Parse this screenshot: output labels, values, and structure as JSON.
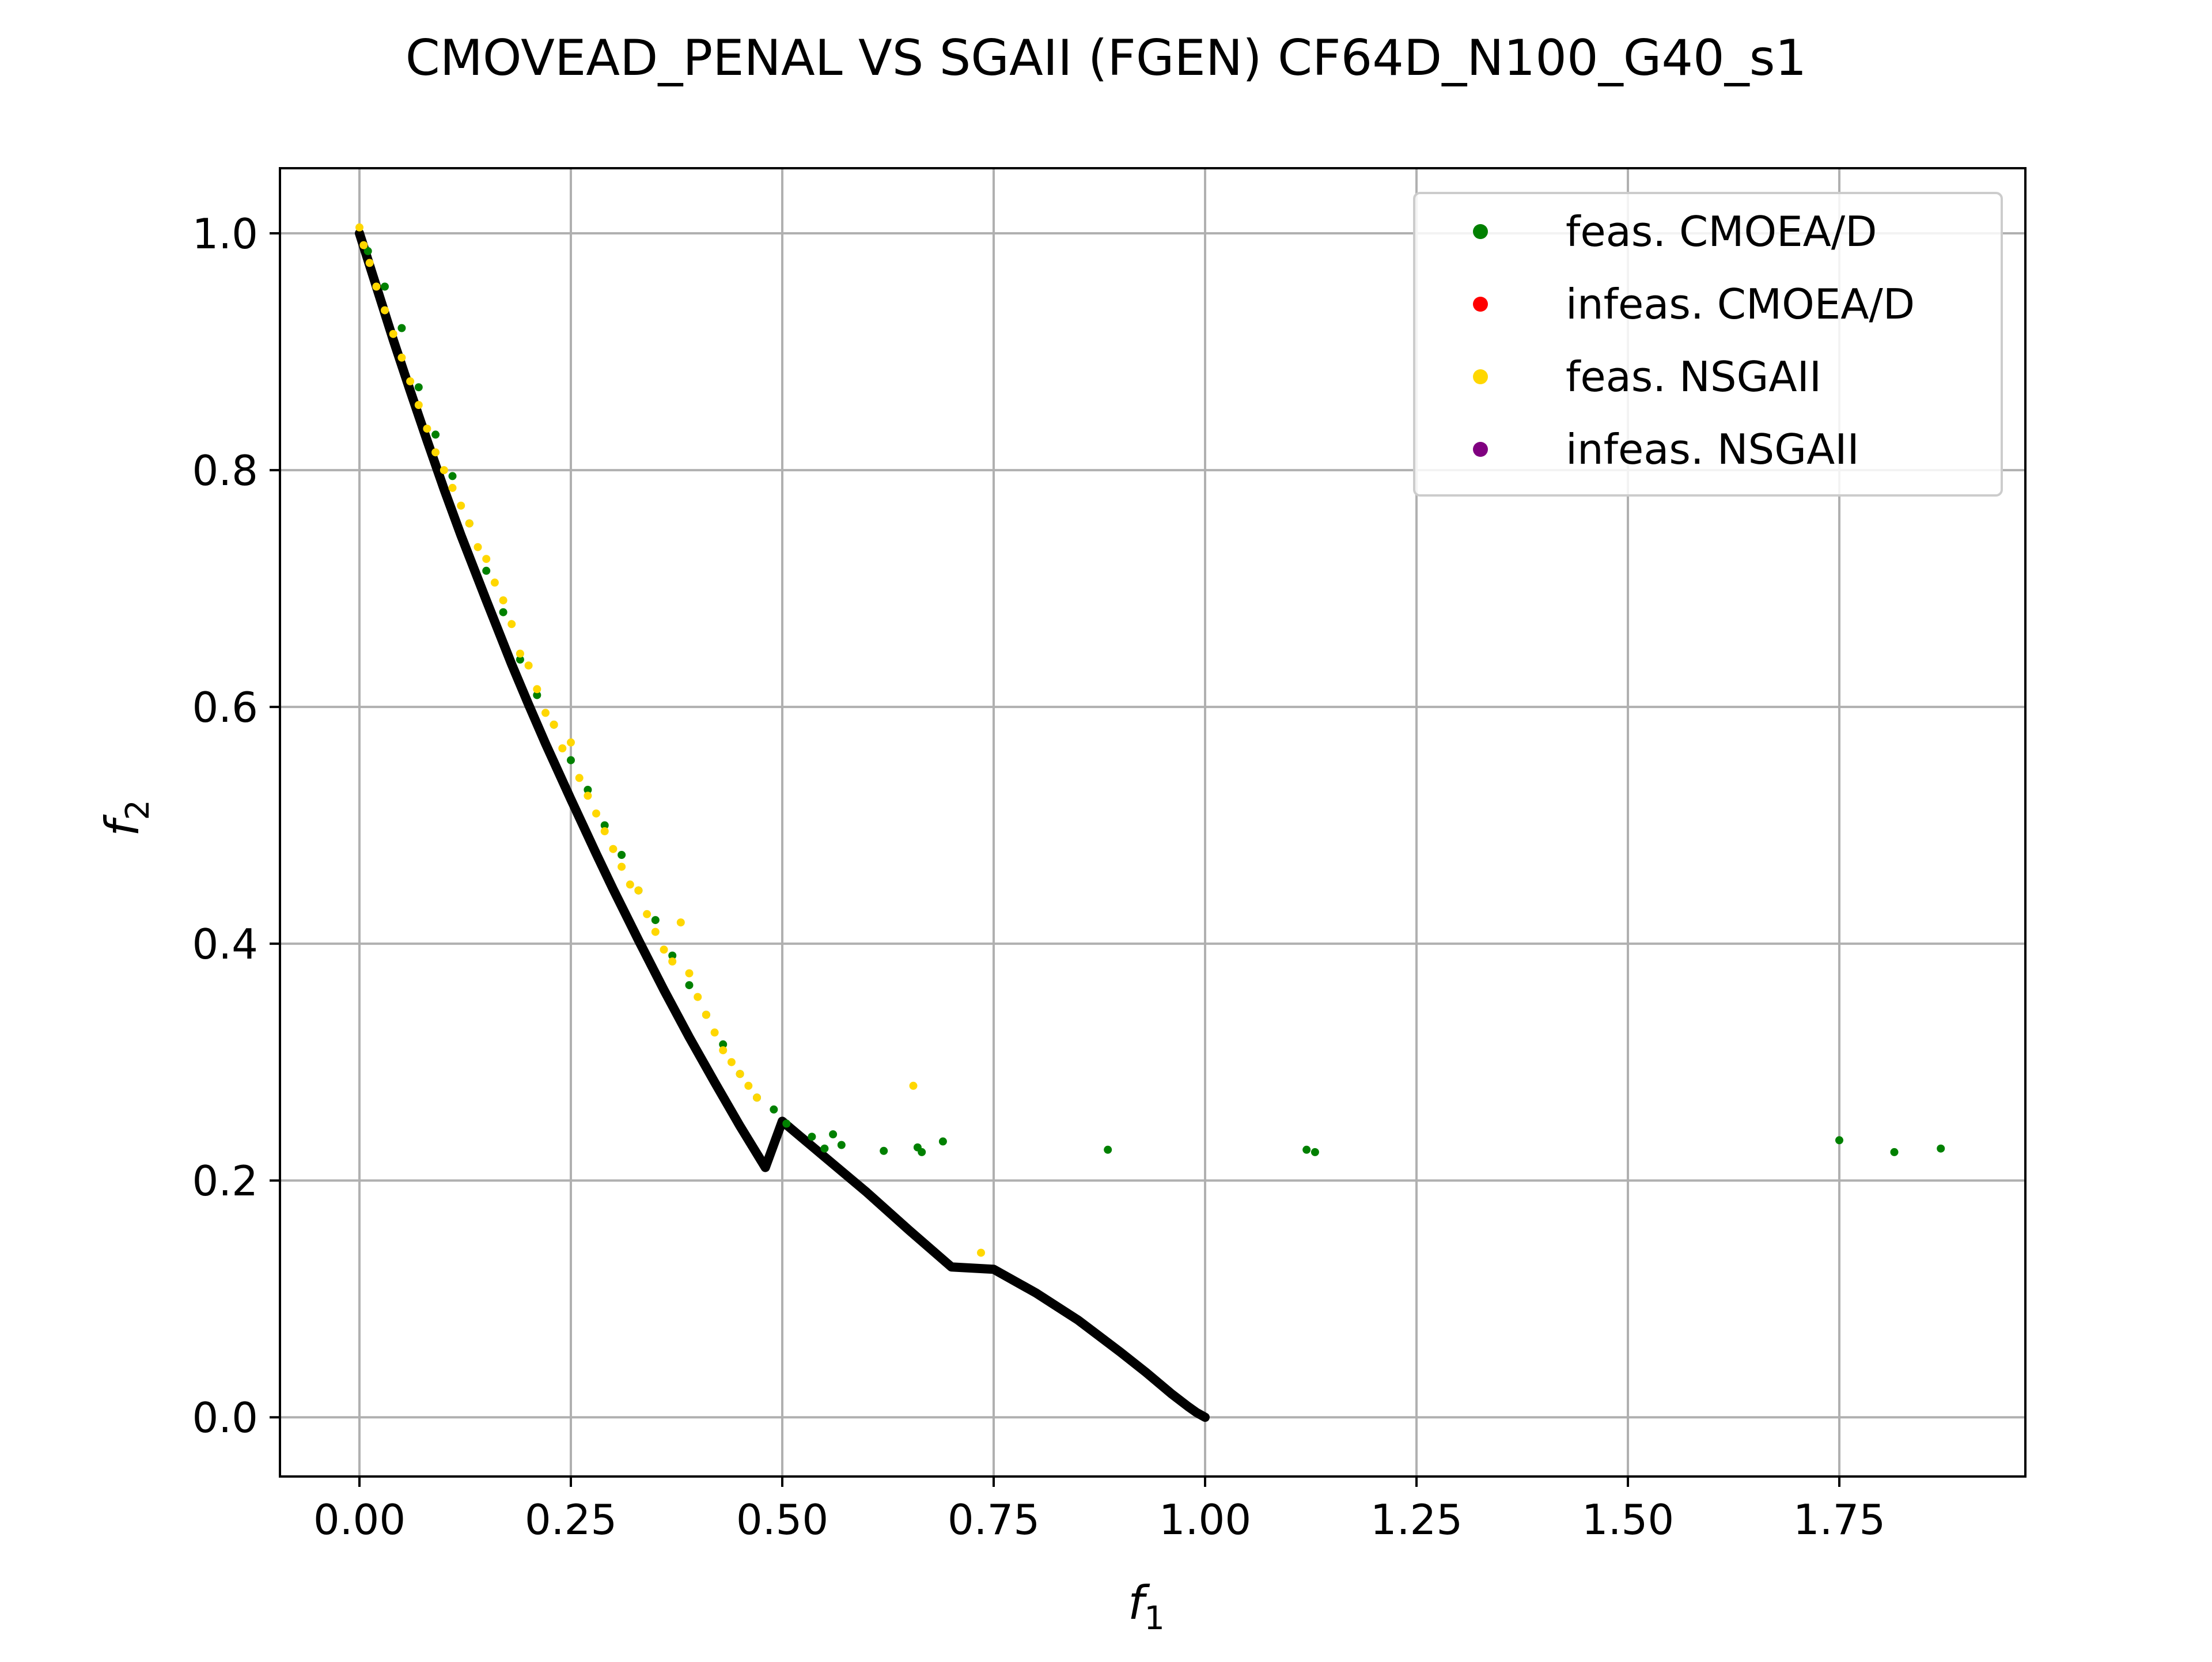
{
  "chart_data": {
    "type": "scatter",
    "title": "CMOVEAD_PENAL VS SGAII (FGEN) CF64D_N100_G40_s1",
    "xlabel": {
      "main": "f",
      "sub": "1"
    },
    "ylabel": {
      "main": "f",
      "sub": "2"
    },
    "xlim": [
      -0.094,
      1.97
    ],
    "ylim": [
      -0.05,
      1.055
    ],
    "xticks": [
      0.0,
      0.25,
      0.5,
      0.75,
      1.0,
      1.25,
      1.5,
      1.75
    ],
    "xtick_labels": [
      "0.00",
      "0.25",
      "0.50",
      "0.75",
      "1.00",
      "1.25",
      "1.50",
      "1.75"
    ],
    "yticks": [
      0.0,
      0.2,
      0.4,
      0.6,
      0.8,
      1.0
    ],
    "ytick_labels": [
      "0.0",
      "0.2",
      "0.4",
      "0.6",
      "0.8",
      "1.0"
    ],
    "grid": true,
    "legend_position": "top-right",
    "legend": [
      {
        "label": "feas. CMOEA/D",
        "color": "#008000"
      },
      {
        "label": "infeas. CMOEA/D",
        "color": "#ff0000"
      },
      {
        "label": "feas. NSGAII",
        "color": "#ffd700"
      },
      {
        "label": "infeas. NSGAII",
        "color": "#800080"
      }
    ],
    "true_front": {
      "color": "#000000",
      "x": [
        0.0,
        0.02,
        0.04,
        0.06,
        0.08,
        0.1,
        0.12,
        0.15,
        0.18,
        0.2,
        0.22,
        0.25,
        0.28,
        0.3,
        0.33,
        0.36,
        0.39,
        0.42,
        0.45,
        0.48,
        0.5,
        0.55,
        0.6,
        0.65,
        0.7,
        0.75,
        0.8,
        0.85,
        0.9,
        0.93,
        0.96,
        0.98,
        0.99,
        1.0
      ],
      "y": [
        1.0,
        0.955,
        0.91,
        0.867,
        0.825,
        0.784,
        0.745,
        0.69,
        0.636,
        0.602,
        0.569,
        0.522,
        0.476,
        0.446,
        0.403,
        0.361,
        0.321,
        0.283,
        0.246,
        0.211,
        0.25,
        0.22,
        0.19,
        0.158,
        0.127,
        0.125,
        0.105,
        0.082,
        0.055,
        0.038,
        0.02,
        0.009,
        0.004,
        0.0
      ]
    },
    "series": [
      {
        "name": "feas. CMOEA/D",
        "color": "#008000",
        "x": [
          0.01,
          0.03,
          0.05,
          0.07,
          0.09,
          0.11,
          0.13,
          0.15,
          0.17,
          0.19,
          0.21,
          0.23,
          0.25,
          0.27,
          0.29,
          0.31,
          0.33,
          0.35,
          0.37,
          0.39,
          0.41,
          0.43,
          0.45,
          0.47,
          0.49,
          0.505,
          0.535,
          0.55,
          0.56,
          0.57,
          0.62,
          0.66,
          0.665,
          0.69,
          0.885,
          1.12,
          1.13,
          1.75,
          1.815,
          1.87
        ],
        "y": [
          0.985,
          0.955,
          0.92,
          0.87,
          0.83,
          0.795,
          0.755,
          0.715,
          0.68,
          0.64,
          0.61,
          0.585,
          0.555,
          0.53,
          0.5,
          0.475,
          0.445,
          0.42,
          0.39,
          0.365,
          0.34,
          0.315,
          0.29,
          0.27,
          0.26,
          0.248,
          0.237,
          0.227,
          0.239,
          0.23,
          0.225,
          0.228,
          0.224,
          0.233,
          0.226,
          0.226,
          0.224,
          0.234,
          0.224,
          0.227
        ]
      },
      {
        "name": "infeas. CMOEA/D",
        "color": "#ff0000",
        "x": [],
        "y": []
      },
      {
        "name": "feas. NSGAII",
        "color": "#ffd700",
        "x": [
          0.0,
          0.005,
          0.012,
          0.02,
          0.03,
          0.04,
          0.05,
          0.06,
          0.07,
          0.08,
          0.09,
          0.1,
          0.11,
          0.12,
          0.13,
          0.14,
          0.15,
          0.16,
          0.17,
          0.18,
          0.19,
          0.2,
          0.21,
          0.22,
          0.23,
          0.24,
          0.25,
          0.26,
          0.27,
          0.28,
          0.29,
          0.3,
          0.31,
          0.32,
          0.33,
          0.34,
          0.35,
          0.36,
          0.37,
          0.38,
          0.39,
          0.4,
          0.41,
          0.42,
          0.43,
          0.44,
          0.45,
          0.46,
          0.47,
          0.655,
          0.735
        ],
        "y": [
          1.005,
          0.99,
          0.975,
          0.955,
          0.935,
          0.915,
          0.895,
          0.875,
          0.855,
          0.835,
          0.815,
          0.8,
          0.785,
          0.77,
          0.755,
          0.735,
          0.725,
          0.705,
          0.69,
          0.67,
          0.645,
          0.635,
          0.615,
          0.595,
          0.585,
          0.565,
          0.57,
          0.54,
          0.525,
          0.51,
          0.495,
          0.48,
          0.465,
          0.45,
          0.445,
          0.425,
          0.41,
          0.395,
          0.385,
          0.418,
          0.375,
          0.355,
          0.34,
          0.325,
          0.31,
          0.3,
          0.29,
          0.28,
          0.27,
          0.28,
          0.139
        ]
      },
      {
        "name": "infeas. NSGAII",
        "color": "#800080",
        "x": [],
        "y": []
      }
    ]
  }
}
